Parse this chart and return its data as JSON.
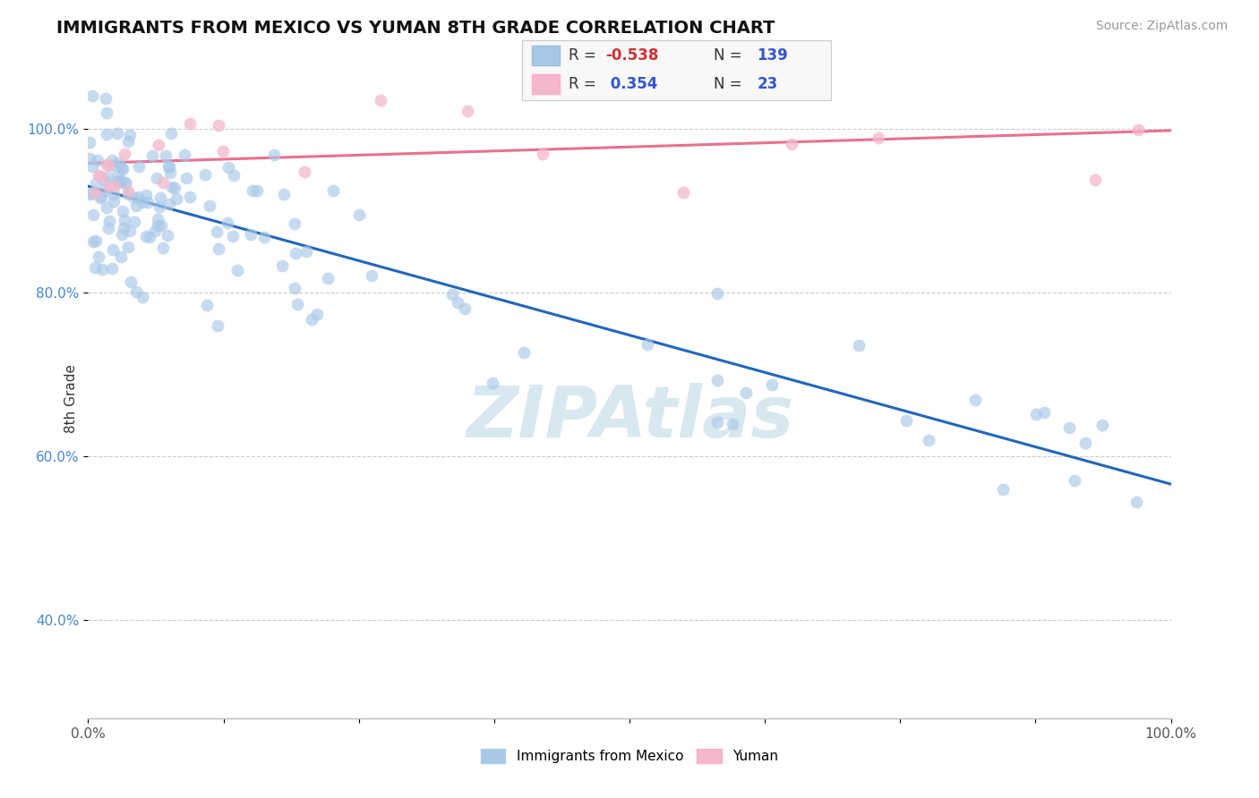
{
  "title": "IMMIGRANTS FROM MEXICO VS YUMAN 8TH GRADE CORRELATION CHART",
  "source_text": "Source: ZipAtlas.com",
  "ylabel": "8th Grade",
  "xlim": [
    0.0,
    1.0
  ],
  "ylim": [
    0.28,
    1.06
  ],
  "y_ticks": [
    0.4,
    0.6,
    0.8,
    1.0
  ],
  "y_tick_labels": [
    "40.0%",
    "60.0%",
    "80.0%",
    "100.0%"
  ],
  "blue_R": "-0.538",
  "blue_N": 139,
  "pink_R": "0.354",
  "pink_N": 23,
  "blue_color": "#a8c8e8",
  "pink_color": "#f4b8cc",
  "blue_line_color": "#2266bb",
  "pink_line_color": "#e87090",
  "legend_label_blue": "Immigrants from Mexico",
  "legend_label_pink": "Yuman",
  "blue_line_y0": 0.93,
  "blue_line_y1": 0.566,
  "pink_line_y0": 0.958,
  "pink_line_y1": 0.998,
  "background_color": "#ffffff",
  "grid_color": "#cccccc",
  "R_label_color": "#cc3333",
  "N_label_color": "#3355cc",
  "watermark_color": "#d8e8f0",
  "legend_box_color": "#f8f8f8"
}
